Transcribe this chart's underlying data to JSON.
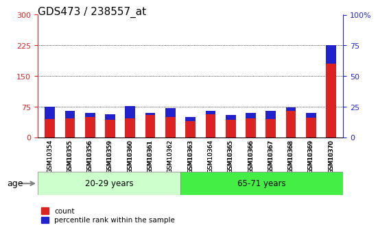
{
  "title": "GDS473 / 238557_at",
  "samples": [
    "GSM10354",
    "GSM10355",
    "GSM10356",
    "GSM10359",
    "GSM10360",
    "GSM10361",
    "GSM10362",
    "GSM10363",
    "GSM10364",
    "GSM10365",
    "GSM10366",
    "GSM10367",
    "GSM10368",
    "GSM10369",
    "GSM10370"
  ],
  "count_values": [
    75,
    65,
    60,
    57,
    77,
    60,
    72,
    50,
    65,
    55,
    60,
    65,
    73,
    60,
    225
  ],
  "percentile_values": [
    30,
    18,
    10,
    13,
    30,
    5,
    22,
    10,
    8,
    12,
    13,
    20,
    8,
    12,
    45
  ],
  "percentile_bottom": [
    45,
    47,
    50,
    44,
    47,
    55,
    50,
    40,
    57,
    43,
    47,
    45,
    65,
    48,
    180
  ],
  "group1_indices": [
    0,
    1,
    2,
    3,
    4,
    5,
    6
  ],
  "group2_indices": [
    7,
    8,
    9,
    10,
    11,
    12,
    13,
    14
  ],
  "group1_label": "20-29 years",
  "group2_label": "65-71 years",
  "age_label": "age",
  "ylim_left": [
    0,
    300
  ],
  "ylim_right": [
    0,
    100
  ],
  "yticks_left": [
    0,
    75,
    150,
    225,
    300
  ],
  "yticks_right": [
    0,
    25,
    50,
    75,
    100
  ],
  "yticklabels_right": [
    "0",
    "25",
    "50",
    "75",
    "100%"
  ],
  "color_red": "#dd2222",
  "color_blue": "#2222cc",
  "color_group1_bg": "#ccffcc",
  "color_group2_bg": "#44ee44",
  "bar_width": 0.5,
  "legend_count": "count",
  "legend_percentile": "percentile rank within the sample"
}
